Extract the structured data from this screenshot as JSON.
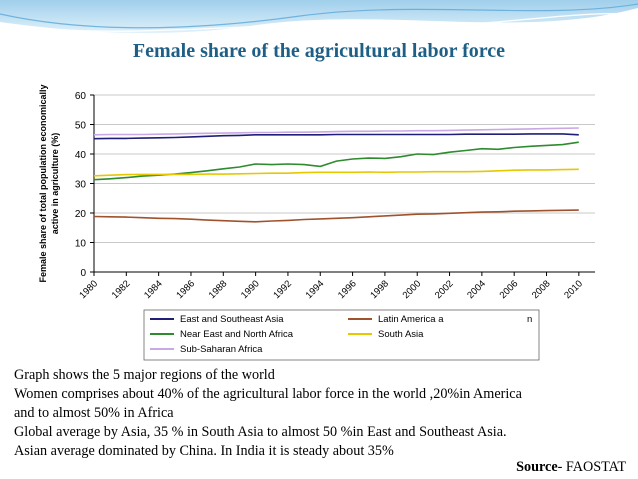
{
  "slide": {
    "title": "Female share of the agricultural labor force",
    "bullets": [
      "Graph shows the 5 major regions of the  world",
      "Women comprises about 40% of the agricultural labor force in the world ,20%in America",
      "and to almost 50% in Africa",
      "Global average by Asia, 35 % in South Asia to almost 50 %in East and Southeast Asia.",
      "Asian average dominated by China. In India it is steady about 35%"
    ],
    "source_label": "Source",
    "source_text": "- FAOSTAT"
  },
  "chart_data": {
    "type": "line",
    "title": "",
    "xlabel": "",
    "ylabel": "Female share of total population economically active in agriculture (%)",
    "ylim": [
      0,
      60
    ],
    "yticks": [
      0,
      10,
      20,
      30,
      40,
      50,
      60
    ],
    "xlim": [
      1980,
      2011
    ],
    "xticks": [
      "1980",
      "1982",
      "1984",
      "1986",
      "1988",
      "1990",
      "1992",
      "1994",
      "1996",
      "1998",
      "2000",
      "2002",
      "2004",
      "2006",
      "2008",
      "2010"
    ],
    "grid": true,
    "legend": "bottom",
    "x": [
      1980,
      1981,
      1982,
      1983,
      1984,
      1985,
      1986,
      1987,
      1988,
      1989,
      1990,
      1991,
      1992,
      1993,
      1994,
      1995,
      1996,
      1997,
      1998,
      1999,
      2000,
      2001,
      2002,
      2003,
      2004,
      2005,
      2006,
      2007,
      2008,
      2009,
      2010
    ],
    "series": [
      {
        "name": "East and Southeast Asia",
        "color": "#1f1f7a",
        "values": [
          45.2,
          45.3,
          45.3,
          45.4,
          45.5,
          45.6,
          45.8,
          46.0,
          46.2,
          46.3,
          46.5,
          46.5,
          46.5,
          46.5,
          46.5,
          46.6,
          46.6,
          46.6,
          46.6,
          46.6,
          46.6,
          46.6,
          46.6,
          46.7,
          46.7,
          46.7,
          46.7,
          46.8,
          46.8,
          46.8,
          46.5
        ]
      },
      {
        "name": "Latin America and the Caribbean",
        "color": "#a0522d",
        "values": [
          18.8,
          18.7,
          18.6,
          18.4,
          18.2,
          18.1,
          17.9,
          17.6,
          17.4,
          17.2,
          17.0,
          17.3,
          17.5,
          17.8,
          18.0,
          18.2,
          18.4,
          18.7,
          19.0,
          19.3,
          19.6,
          19.7,
          19.9,
          20.1,
          20.3,
          20.4,
          20.6,
          20.7,
          20.8,
          20.9,
          21.0
        ]
      },
      {
        "name": "Near East and North Africa",
        "color": "#2e8b2e",
        "values": [
          31.3,
          31.6,
          32.0,
          32.5,
          32.8,
          33.2,
          33.7,
          34.3,
          35.0,
          35.6,
          36.6,
          36.4,
          36.6,
          36.4,
          35.8,
          37.6,
          38.3,
          38.6,
          38.5,
          39.1,
          40.0,
          39.8,
          40.6,
          41.2,
          41.8,
          41.6,
          42.2,
          42.6,
          42.9,
          43.2,
          44.0
        ]
      },
      {
        "name": "South Asia",
        "color": "#e6c800",
        "values": [
          32.6,
          32.8,
          33.0,
          33.1,
          33.1,
          33.1,
          33.1,
          33.2,
          33.2,
          33.3,
          33.4,
          33.5,
          33.5,
          33.7,
          33.8,
          33.8,
          33.8,
          33.9,
          33.8,
          33.9,
          33.9,
          34.0,
          34.0,
          34.0,
          34.1,
          34.3,
          34.5,
          34.6,
          34.6,
          34.7,
          34.8
        ]
      },
      {
        "name": "Sub-Saharan Africa",
        "color": "#c9a8e6",
        "values": [
          46.5,
          46.6,
          46.6,
          46.6,
          46.7,
          46.8,
          46.9,
          47.0,
          47.1,
          47.2,
          47.3,
          47.3,
          47.4,
          47.4,
          47.5,
          47.6,
          47.7,
          47.7,
          47.8,
          47.8,
          47.9,
          47.9,
          48.0,
          48.1,
          48.2,
          48.3,
          48.4,
          48.5,
          48.6,
          48.7,
          48.8
        ]
      }
    ],
    "legend_entries": [
      {
        "label": "East and Southeast Asia",
        "color": "#1f1f7a"
      },
      {
        "label": "Latin America a",
        "color": "#a0522d"
      },
      {
        "label": "n",
        "color": ""
      },
      {
        "label": "Near East and North Africa",
        "color": "#2e8b2e"
      },
      {
        "label": "South Asia",
        "color": "#e6c800"
      },
      {
        "label": "Sub-Saharan Africa",
        "color": "#c9a8e6"
      }
    ]
  }
}
